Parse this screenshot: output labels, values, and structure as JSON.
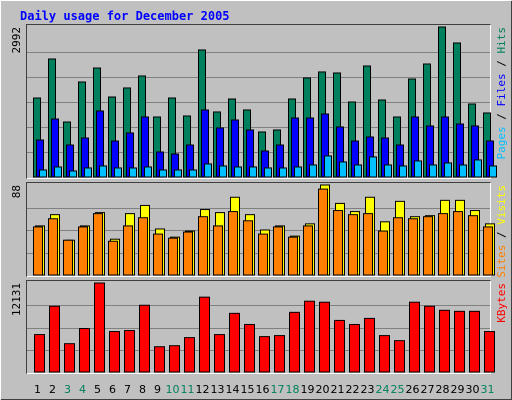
{
  "chart_data": [
    {
      "type": "bar",
      "title": "Daily usage for December 2005",
      "ylim": [
        0,
        2992
      ],
      "yticks": [
        2992
      ],
      "grid": true,
      "legend_position": "right",
      "legend_separator": " / ",
      "series": [
        {
          "name": "Pages",
          "color": "#00c0ff",
          "values": [
            140,
            200,
            120,
            180,
            220,
            180,
            180,
            200,
            140,
            140,
            140,
            260,
            220,
            200,
            200,
            180,
            180,
            200,
            240,
            420,
            300,
            240,
            400,
            240,
            220,
            320,
            240,
            280,
            240,
            340,
            220
          ]
        },
        {
          "name": "Files",
          "color": "#0000ff",
          "values": [
            738,
            1157,
            638,
            778,
            1317,
            718,
            878,
            1197,
            499,
            459,
            638,
            1337,
            978,
            1137,
            938,
            519,
            638,
            1177,
            1177,
            1257,
            998,
            718,
            798,
            778,
            638,
            1197,
            1018,
            1197,
            1057,
            1018,
            718
          ]
        },
        {
          "name": "Hits",
          "color": "#00805c",
          "values": [
            1576,
            2354,
            1097,
            1895,
            2174,
            1596,
            1776,
            2015,
            1197,
            1576,
            1217,
            2534,
            1297,
            1556,
            1337,
            898,
            938,
            1556,
            1975,
            2095,
            2075,
            1496,
            2214,
            1536,
            1197,
            1955,
            2254,
            2992,
            2673,
            1456,
            1277
          ]
        }
      ]
    },
    {
      "type": "bar",
      "ylim": [
        0,
        88
      ],
      "yticks": [
        88
      ],
      "grid": true,
      "legend_position": "right",
      "legend_separator": " / ",
      "series": [
        {
          "name": "Sites",
          "color": "#ff8000",
          "values": [
            47,
            55,
            34,
            47,
            60,
            33,
            48,
            56,
            40,
            36,
            42,
            57,
            48,
            62,
            53,
            40,
            47,
            37,
            48,
            84,
            63,
            59,
            60,
            43,
            56,
            55,
            57,
            60,
            62,
            58,
            47
          ]
        },
        {
          "name": "Visits",
          "color": "#ffff00",
          "values": [
            48,
            59,
            34,
            48,
            61,
            35,
            60,
            68,
            45,
            37,
            43,
            64,
            61,
            76,
            59,
            44,
            48,
            38,
            50,
            88,
            70,
            62,
            76,
            52,
            72,
            57,
            58,
            73,
            73,
            63,
            50
          ]
        }
      ]
    },
    {
      "type": "bar",
      "ylim": [
        0,
        12131
      ],
      "yticks": [
        12131
      ],
      "grid": true,
      "legend_position": "right",
      "categories": [
        "1",
        "2",
        "3",
        "4",
        "5",
        "6",
        "7",
        "8",
        "9",
        "10",
        "11",
        "12",
        "13",
        "14",
        "15",
        "16",
        "17",
        "18",
        "19",
        "20",
        "21",
        "22",
        "23",
        "24",
        "25",
        "26",
        "27",
        "28",
        "29",
        "30",
        "31"
      ],
      "category_colors": [
        "#000000",
        "#000000",
        "#00805c",
        "#00805c",
        "#000000",
        "#000000",
        "#000000",
        "#000000",
        "#000000",
        "#00805c",
        "#00805c",
        "#000000",
        "#000000",
        "#000000",
        "#000000",
        "#000000",
        "#00805c",
        "#00805c",
        "#000000",
        "#000000",
        "#000000",
        "#000000",
        "#000000",
        "#00805c",
        "#00805c",
        "#000000",
        "#000000",
        "#000000",
        "#000000",
        "#000000",
        "#00805c"
      ],
      "series": [
        {
          "name": "KBytes",
          "color": "#ff0000",
          "values": [
            5101,
            8961,
            3860,
            5928,
            12131,
            5514,
            5652,
            9098,
            3446,
            3584,
            4687,
            10201,
            5101,
            7995,
            6479,
            4825,
            4963,
            8133,
            9650,
            9512,
            7030,
            6479,
            7306,
            4963,
            4273,
            9512,
            8961,
            8409,
            8271,
            8271,
            5514
          ]
        }
      ]
    }
  ]
}
